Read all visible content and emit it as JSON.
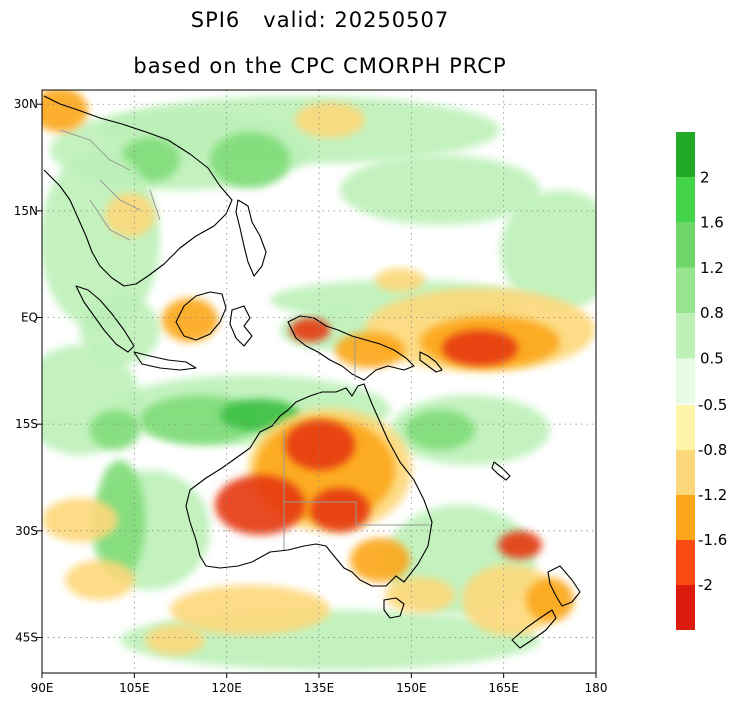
{
  "title": {
    "line1": "SPI6   valid: 20250507",
    "line2": "based on the CPC CMORPH PRCP"
  },
  "map": {
    "lon_range": [
      90,
      180
    ],
    "lat_range": [
      -50,
      32
    ],
    "lon_ticks": [
      {
        "value": 90,
        "label": "90E"
      },
      {
        "value": 105,
        "label": "105E"
      },
      {
        "value": 120,
        "label": "120E"
      },
      {
        "value": 135,
        "label": "135E"
      },
      {
        "value": 150,
        "label": "150E"
      },
      {
        "value": 165,
        "label": "165E"
      },
      {
        "value": 180,
        "label": "180"
      }
    ],
    "lat_ticks": [
      {
        "value": 30,
        "label": "30N"
      },
      {
        "value": 15,
        "label": "15N"
      },
      {
        "value": 0,
        "label": "EQ"
      },
      {
        "value": -15,
        "label": "15S"
      },
      {
        "value": -30,
        "label": "30S"
      },
      {
        "value": -45,
        "label": "45S"
      }
    ],
    "grid": true
  },
  "colorbar_wet": {
    "colors": [
      "#e8fbe4",
      "#bdf1b8",
      "#96e58e",
      "#6fd76a",
      "#43d44a",
      "#22aa27"
    ],
    "labels": [
      "0.5",
      "0.8",
      "1.2",
      "1.6",
      "2"
    ]
  },
  "colorbar_dry": {
    "colors": [
      "#fff5a8",
      "#fdd87a",
      "#fca61a",
      "#fb4a12",
      "#dc1a0e"
    ],
    "labels": [
      "-0.5",
      "-0.8",
      "-1.2",
      "-1.6",
      "-2"
    ]
  },
  "colors": {
    "wet_light": "#bdf1b8",
    "wet_mid": "#7fdc78",
    "wet_dark": "#3cc043",
    "dry_light": "#fdd87a",
    "dry_mid": "#fca61a",
    "dry_dark": "#e6360f",
    "coast": "#000000",
    "border": "#9a9a9a"
  }
}
